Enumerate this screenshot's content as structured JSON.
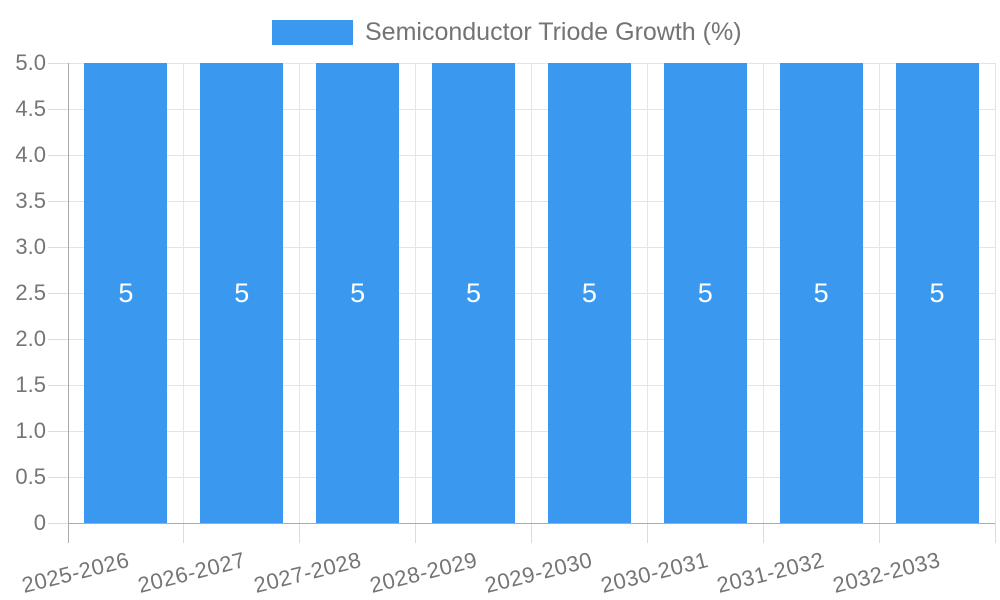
{
  "legend": {
    "label": "Semiconductor Triode Growth (%)"
  },
  "chart_data": {
    "type": "bar",
    "title": "",
    "legend_label": "Semiconductor Triode Growth (%)",
    "legend_position": "top-center",
    "categories": [
      "2025-2026",
      "2026-2027",
      "2027-2028",
      "2028-2029",
      "2029-2030",
      "2030-2031",
      "2031-2032",
      "2032-2033"
    ],
    "series": [
      {
        "name": "Semiconductor Triode Growth (%)",
        "values": [
          5,
          5,
          5,
          5,
          5,
          5,
          5,
          5
        ]
      }
    ],
    "value_labels_shown": true,
    "xlabel": "",
    "ylabel": "",
    "ylim": [
      0,
      5
    ],
    "ytick_labels": [
      "0",
      "0.5",
      "1.0",
      "1.5",
      "2.0",
      "2.5",
      "3.0",
      "3.5",
      "4.0",
      "4.5",
      "5.0"
    ],
    "grid": true,
    "colors": {
      "bar": "#3A99EE",
      "value_label": "#FFFFFF",
      "gridline": "#E4E4E4",
      "tick_mark": "#DCDCDC",
      "axis_line": "#ABABAB",
      "axis_label": "#757575",
      "legend_text": "#747474",
      "background": "#FFFFFF"
    }
  }
}
